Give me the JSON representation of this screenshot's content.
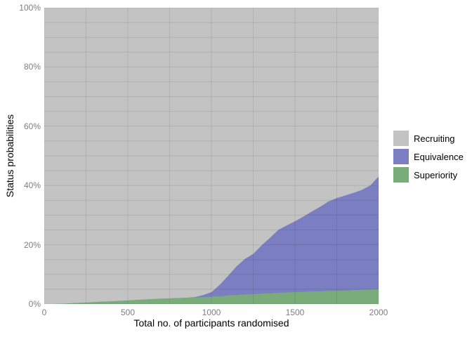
{
  "axes": {
    "x": {
      "label": "Total no. of participants randomised",
      "tick_labels": [
        "0",
        "500",
        "1000",
        "1500",
        "2000"
      ],
      "tick_values": [
        0,
        500,
        1000,
        1500,
        2000
      ],
      "range": [
        0,
        2000
      ],
      "minor_gridline_step": 250
    },
    "y": {
      "label": "Status probabilities",
      "tick_labels": [
        "0%",
        "20%",
        "40%",
        "60%",
        "80%",
        "100%"
      ],
      "tick_values": [
        0,
        20,
        40,
        60,
        80,
        100
      ],
      "range": [
        0,
        100
      ],
      "minor_gridline_step": 5
    }
  },
  "legend": {
    "position": "right",
    "items": [
      {
        "label": "Recruiting",
        "color": "#c3c3c3"
      },
      {
        "label": "Equivalence",
        "color": "#7b7ec1"
      },
      {
        "label": "Superiority",
        "color": "#7aac7a"
      }
    ]
  },
  "colors": {
    "recruiting": "#c3c3c3",
    "equivalence": "#7b7ec1",
    "superiority": "#7aac7a",
    "gridline": "rgba(0,0,0,0.085)",
    "tick_text": "#7e7e7e",
    "title_text": "#000000",
    "background": "#ffffff"
  },
  "chart_data": {
    "type": "area",
    "stacked": true,
    "stack_order_bottom_to_top": [
      "Superiority",
      "Equivalence",
      "Recruiting"
    ],
    "title": "",
    "xlabel": "Total no. of participants randomised",
    "ylabel": "Status probabilities",
    "xlim": [
      0,
      2000
    ],
    "ylim_percent": [
      0,
      100
    ],
    "grid": true,
    "legend_position": "right",
    "x": [
      0,
      50,
      100,
      150,
      200,
      250,
      300,
      350,
      400,
      450,
      500,
      550,
      600,
      650,
      700,
      750,
      800,
      850,
      900,
      950,
      1000,
      1050,
      1100,
      1150,
      1200,
      1250,
      1300,
      1350,
      1400,
      1450,
      1500,
      1550,
      1600,
      1650,
      1700,
      1750,
      1800,
      1850,
      1900,
      1950,
      2000
    ],
    "series": [
      {
        "name": "Superiority",
        "color": "#7aac7a",
        "values_percent": [
          0,
          0,
          0.05,
          0.2,
          0.35,
          0.5,
          0.65,
          0.8,
          0.9,
          1.05,
          1.2,
          1.35,
          1.5,
          1.65,
          1.8,
          1.9,
          2.0,
          2.1,
          2.2,
          2.3,
          2.5,
          2.6,
          2.9,
          3.0,
          3.2,
          3.3,
          3.5,
          3.6,
          3.8,
          3.9,
          4.0,
          4.1,
          4.2,
          4.3,
          4.4,
          4.45,
          4.5,
          4.7,
          4.8,
          4.9,
          5.0
        ]
      },
      {
        "name": "Equivalence",
        "color": "#7b7ec1",
        "values_percent": [
          0,
          0,
          0,
          0,
          0,
          0,
          0,
          0,
          0,
          0,
          0,
          0,
          0,
          0,
          0,
          0,
          0,
          0,
          0.1,
          0.7,
          1.5,
          3.9,
          6.6,
          9.7,
          12.0,
          13.6,
          16.3,
          18.7,
          21.2,
          22.6,
          23.9,
          25.4,
          27.0,
          28.5,
          30.2,
          31.3,
          32.1,
          32.8,
          33.7,
          35.1,
          38.0
        ]
      },
      {
        "name": "Recruiting",
        "color": "#c3c3c3",
        "values_percent": [
          100,
          100,
          99.95,
          99.8,
          99.65,
          99.5,
          99.35,
          99.2,
          99.1,
          98.95,
          98.8,
          98.65,
          98.5,
          98.35,
          98.2,
          98.1,
          98.0,
          97.9,
          97.7,
          97.0,
          96.0,
          93.5,
          90.5,
          87.3,
          84.8,
          83.1,
          80.2,
          77.7,
          75.0,
          73.5,
          72.1,
          70.5,
          68.8,
          67.2,
          65.4,
          64.25,
          63.4,
          62.5,
          61.5,
          60.0,
          57.0
        ]
      }
    ]
  }
}
